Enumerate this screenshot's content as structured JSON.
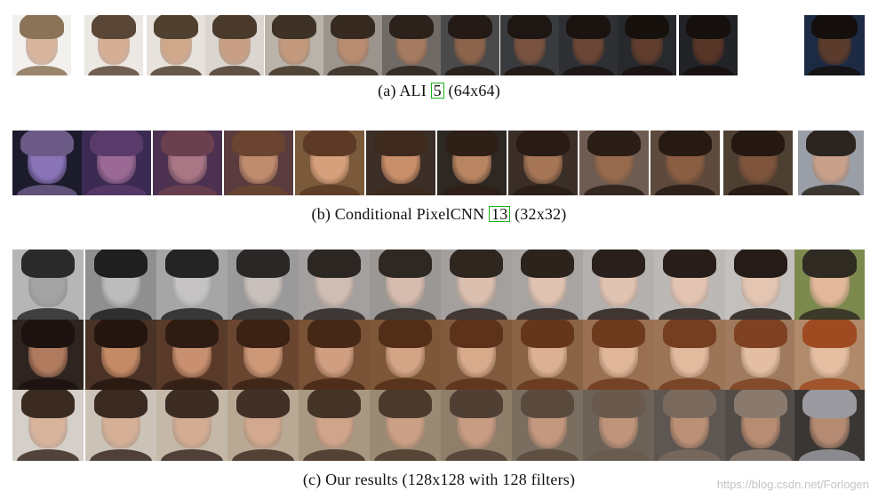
{
  "captions": {
    "a": {
      "pre": "(a) ALI ",
      "ref": "5",
      "post": " (64x64)"
    },
    "b": {
      "pre": "(b) Conditional PixelCNN ",
      "ref": "13",
      "post": " (32x32)"
    },
    "c": {
      "pre": "(c) Our results (128x128 with 128 filters)",
      "ref": "",
      "post": ""
    }
  },
  "watermark": "https://blog.csdn.net/Forlogen",
  "colors": {
    "citation_box": "#19b219",
    "background": "#ffffff"
  },
  "rows": {
    "a": {
      "bg": [
        "#f3f1ee",
        "#ece9e4",
        "#e7e3dc",
        "#dad6cf",
        "#b9b3aa",
        "#9b958d",
        "#6f6a66",
        "#4b4a4b",
        "#3a3b3e",
        "#2e3034",
        "#28292d",
        "#222327",
        "#1d2a44"
      ],
      "skin": [
        "#d9b49d",
        "#d6ae94",
        "#cfa88c",
        "#c89f84",
        "#c3997d",
        "#b88c70",
        "#a47a60",
        "#8c644b",
        "#7a5340",
        "#6b4535",
        "#5f3c2e",
        "#573527",
        "#5b3b2c"
      ],
      "hair": [
        "#8a7356",
        "#5a4636",
        "#50402f",
        "#4a3a2c",
        "#3e3125",
        "#362a20",
        "#2c221b",
        "#241b16",
        "#1e1612",
        "#1a1310",
        "#17110e",
        "#150f0d",
        "#140f0d"
      ]
    },
    "b": {
      "bg": [
        "#1b1b2c",
        "#3b2a52",
        "#4c3150",
        "#5a3c3e",
        "#7a5a3a",
        "#3c2f28",
        "#2e2822",
        "#3a2e26",
        "#6e5c52",
        "#5d4a3d",
        "#4e3f33",
        "#9a9ea6"
      ],
      "skin": [
        "#8a74b8",
        "#9a6a94",
        "#a87684",
        "#c08c6e",
        "#d7a07c",
        "#c98e6a",
        "#b98462",
        "#a57556",
        "#956a4d",
        "#8a5e43",
        "#7e553c",
        "#c9a08a"
      ],
      "hair": [
        "#6b5a86",
        "#5a3a6a",
        "#6a3f4e",
        "#6a4430",
        "#5c3a26",
        "#3e2a1e",
        "#2e1f17",
        "#2a1c14",
        "#2a1d16",
        "#261a13",
        "#241811",
        "#2b241f"
      ]
    },
    "c1": {
      "bg": [
        "#b6b6b6",
        "#8f8f8f",
        "#a6a6a6",
        "#9a9a9a",
        "#a4a0a0",
        "#9b9794",
        "#a3a09e",
        "#a7a4a2",
        "#b3b0ae",
        "#bcb8b6",
        "#c4c0bd",
        "#7d8a4e"
      ],
      "skin": [
        "#a3a3a3",
        "#bcbcbc",
        "#c4c2c2",
        "#c8bfbb",
        "#cfbcb2",
        "#d6bcae",
        "#dcc0af",
        "#dfc2b0",
        "#e1c3b1",
        "#e3c4b2",
        "#e4c5b2",
        "#e3b79a"
      ],
      "hair": [
        "#2a2a2a",
        "#1f1f1f",
        "#242424",
        "#2a2726",
        "#2d2724",
        "#2f2722",
        "#302620",
        "#2d231d",
        "#2a201b",
        "#281e19",
        "#251c17",
        "#2f2a22"
      ]
    },
    "c2": {
      "bg": [
        "#2e2420",
        "#4a3226",
        "#5a3a28",
        "#6a4630",
        "#7a5236",
        "#7e5638",
        "#805a3c",
        "#8a6444",
        "#9a7052",
        "#9c7456",
        "#a07a5e",
        "#b08a6a"
      ],
      "skin": [
        "#b07a5e",
        "#c48a66",
        "#c89070",
        "#cc9878",
        "#d09e80",
        "#d4a486",
        "#d8aa8c",
        "#dcb092",
        "#e0b698",
        "#e2ba9e",
        "#e4bea2",
        "#e6bfa2"
      ],
      "hair": [
        "#1c1210",
        "#24160f",
        "#2e1c12",
        "#3a2214",
        "#462816",
        "#522e18",
        "#5c321a",
        "#66361c",
        "#6e3a1e",
        "#763e20",
        "#7e4222",
        "#a04a22"
      ]
    },
    "c3": {
      "bg": [
        "#d4cfc8",
        "#cbc3b8",
        "#c4b8a8",
        "#b8a894",
        "#a89882",
        "#9a8a74",
        "#8e7e6a",
        "#7a6e60",
        "#6c6258",
        "#5e5650",
        "#524c48",
        "#3a3634"
      ],
      "skin": [
        "#d8b49c",
        "#d6b096",
        "#d4ac92",
        "#d2a88e",
        "#d0a48a",
        "#cca086",
        "#c89c82",
        "#c4987e",
        "#c0947a",
        "#bc9076",
        "#b88c72",
        "#b48a72"
      ],
      "hair": [
        "#3a2a20",
        "#3a2a22",
        "#3c2c24",
        "#403026",
        "#443428",
        "#4a3a2c",
        "#504034",
        "#5a4a3e",
        "#6a5a4e",
        "#7a6a5e",
        "#8a7a6e",
        "#9a9aa0"
      ]
    }
  }
}
